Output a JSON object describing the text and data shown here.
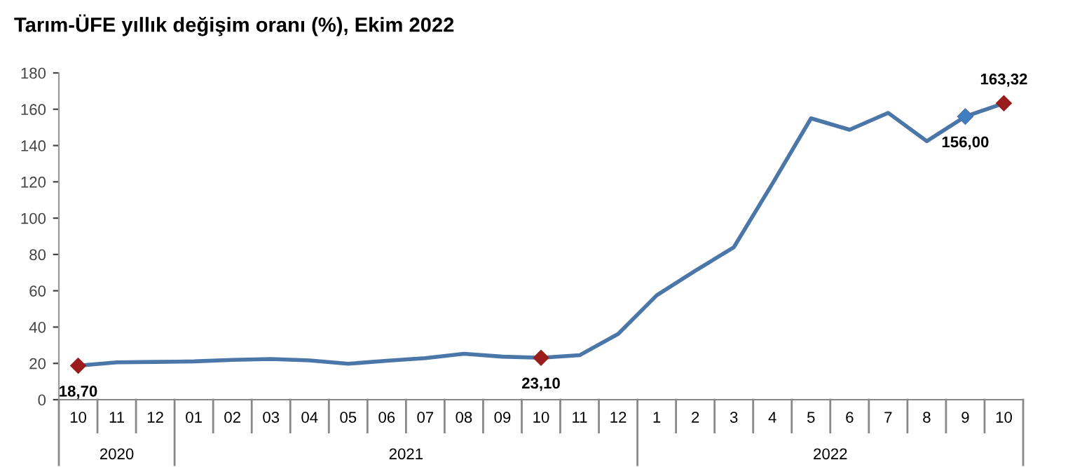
{
  "chart_data": {
    "type": "line",
    "title": "Tarım-ÜFE yıllık değişim oranı (%), Ekim 2022",
    "categories": [
      "10",
      "11",
      "12",
      "01",
      "02",
      "03",
      "04",
      "05",
      "06",
      "07",
      "08",
      "09",
      "10",
      "11",
      "12",
      "1",
      "2",
      "3",
      "4",
      "5",
      "6",
      "7",
      "8",
      "9",
      "10"
    ],
    "series": [
      {
        "color": "#4a76a8",
        "values": [
          18.7,
          20.6,
          20.8,
          21.1,
          21.9,
          22.4,
          21.6,
          19.8,
          21.4,
          22.9,
          25.3,
          23.7,
          23.1,
          24.5,
          36.2,
          57.5,
          71,
          84,
          119,
          155,
          148.7,
          158,
          142.4,
          156.0,
          163.32
        ],
        "colors": [
          "#9b1c1c",
          null,
          null,
          null,
          null,
          null,
          null,
          null,
          null,
          null,
          null,
          null,
          "#9b1c1c",
          null,
          null,
          null,
          null,
          null,
          null,
          null,
          null,
          null,
          null,
          "#3f7fc0",
          "#9b1c1c"
        ],
        "value_labels": [
          "18,70",
          null,
          null,
          null,
          null,
          null,
          null,
          null,
          null,
          null,
          null,
          null,
          "23,10",
          null,
          null,
          null,
          null,
          null,
          null,
          null,
          null,
          null,
          null,
          "156,00",
          "163,32"
        ]
      }
    ],
    "line_style": "solid",
    "ylim": [
      0,
      180
    ],
    "yticks": [
      0,
      20,
      40,
      60,
      80,
      100,
      120,
      140,
      160,
      180
    ],
    "grid": false,
    "legend": false,
    "annotations": [
      "2020",
      "2021",
      "2022"
    ]
  }
}
